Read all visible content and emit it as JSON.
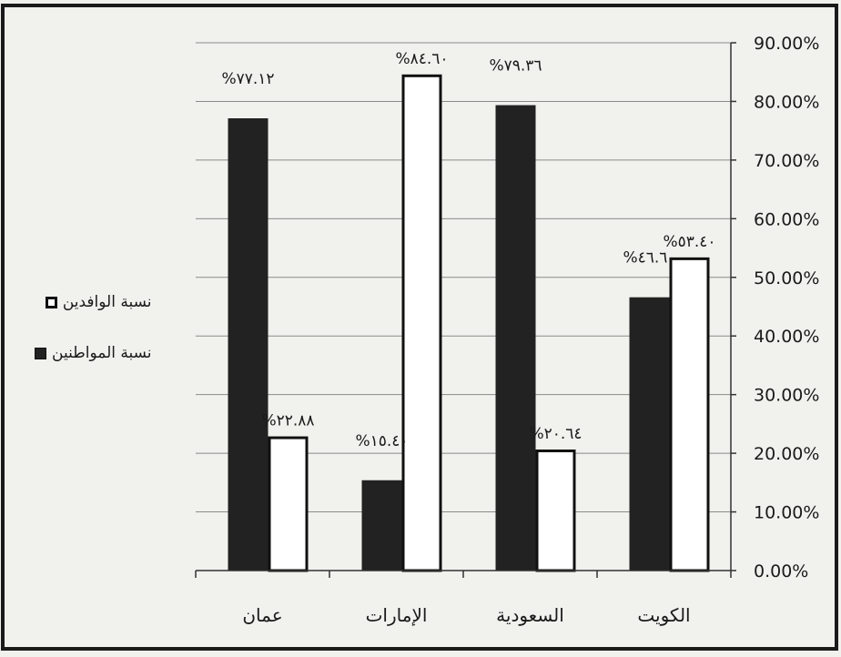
{
  "chart_data": {
    "type": "bar",
    "categories": [
      "عمان",
      "الإمارات",
      "السعودية",
      "الكويت"
    ],
    "series": [
      {
        "name": "نسبة المواطنين",
        "values": [
          77.12,
          15.4,
          79.36,
          46.6
        ],
        "labels": [
          "%٧٧.١٢",
          "%١٥.٤٠",
          "%٧٩.٣٦",
          "%٤٦.٦٠"
        ],
        "color": "#222222"
      },
      {
        "name": "نسبة الوافدين",
        "values": [
          22.88,
          84.6,
          20.64,
          53.4
        ],
        "labels": [
          "%٢٢.٨٨",
          "%٨٤.٦٠",
          "%٢٠.٦٤",
          "%٥٣.٤٠"
        ],
        "color": "#ffffff"
      }
    ],
    "yticks": [
      "0.00%",
      "10.00%",
      "20.00%",
      "30.00%",
      "40.00%",
      "50.00%",
      "60.00%",
      "70.00%",
      "80.00%",
      "90.00%"
    ],
    "ylim": [
      0,
      90
    ],
    "yaxis_position": "right",
    "grid": true,
    "legend_position": "left",
    "title": "",
    "xlabel": "",
    "ylabel": ""
  }
}
